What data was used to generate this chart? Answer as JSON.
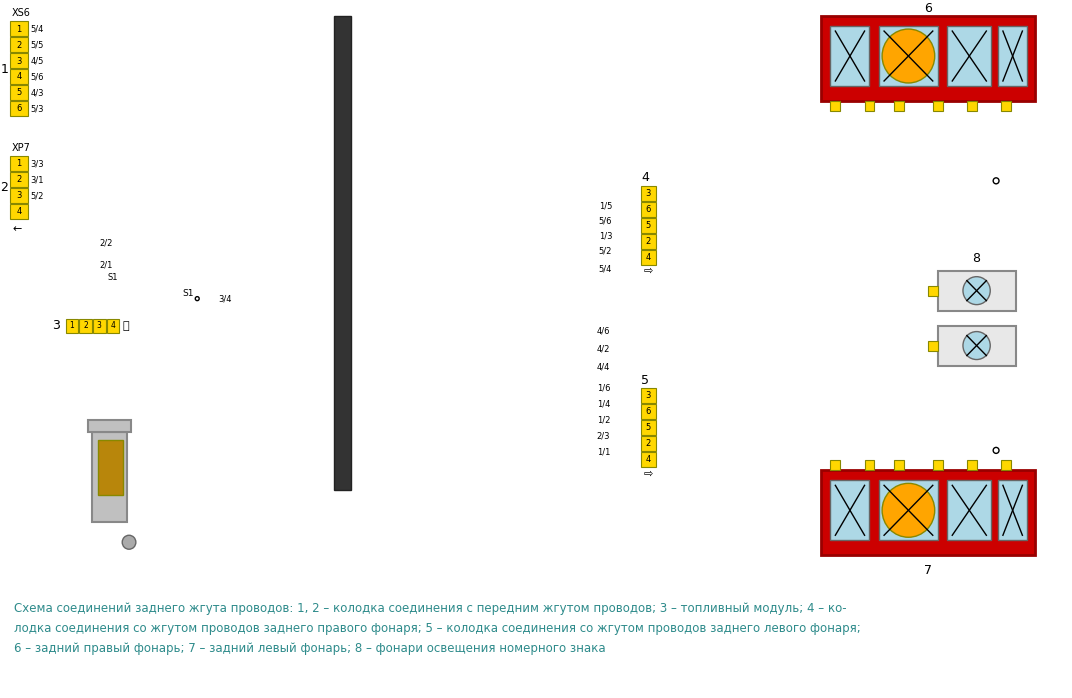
{
  "title": "",
  "bg_color": "#ffffff",
  "caption_color": "#2E8B8B",
  "caption_bold_items": [
    "Схема соединений заднего жгута проводов:",
    "1",
    "2",
    "3",
    "4",
    "5",
    "6",
    "7",
    "8"
  ],
  "caption_line1": "Схема соединений заднего жгута проводов: 1, 2 – колодка соединения с передним жгутом проводов; 3 – топливный модуль; 4 – ко-",
  "caption_line2": "лодка соединения со жгутом проводов заднего правого фонаря; 5 – колодка соединения со жгутом проводов заднего левого фонаря;",
  "caption_line3": "6 – задний правый фонарь; 7 – задний левый фонарь; 8 – фонари освещения номерного знака",
  "connector1_label": "XS6",
  "connector1_pins": [
    "1",
    "2",
    "3",
    "4",
    "5",
    "6"
  ],
  "connector1_wire_labels": [
    "5/4",
    "5/5",
    "4/5",
    "5/6",
    "4/3",
    "5/3"
  ],
  "connector1_wire_colors": [
    "#FF69B4",
    "#FFFF00",
    "#00AA00",
    "#00CCCC",
    "#8B4513",
    "#000000"
  ],
  "connector2_label": "XP7",
  "connector2_pins": [
    "1",
    "2",
    "3",
    "4"
  ],
  "connector2_wire_labels": [
    "3/3",
    "3/1",
    "5/2",
    ""
  ],
  "connector2_wire_colors": [
    "#808080",
    "#9B59B6",
    "#00AAFF",
    "#FFFFFF"
  ],
  "label1": "1",
  "label2": "2",
  "label3": "3",
  "label4": "4",
  "label5": "5",
  "label6": "6",
  "label7": "7",
  "label8": "8",
  "harness_color": "#000000",
  "red_lamp_color": "#CC0000",
  "lamp_bg": "#ADD8E6",
  "connector_fill": "#FFD700",
  "connector_border": "#888800"
}
